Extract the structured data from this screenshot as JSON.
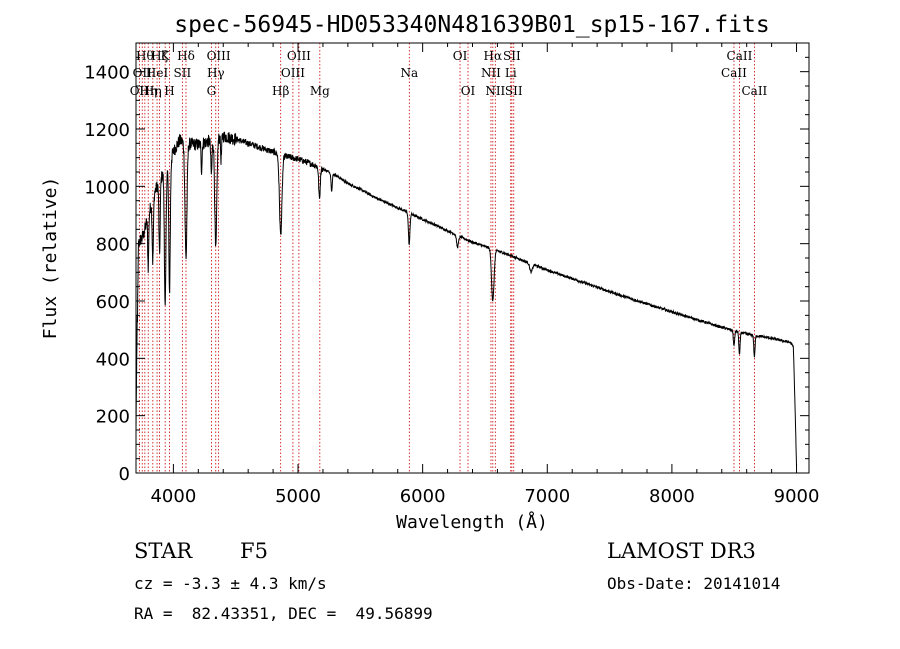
{
  "chart_data": {
    "type": "line",
    "title": "spec-56945-HD053340N481639B01_sp15-167.fits",
    "xlabel": "Wavelength (Å)",
    "ylabel": "Flux (relative)",
    "xlim": [
      3700,
      9100
    ],
    "ylim": [
      0,
      1500
    ],
    "xticks": [
      4000,
      5000,
      6000,
      7000,
      8000,
      9000
    ],
    "yticks": [
      0,
      200,
      400,
      600,
      800,
      1000,
      1200,
      1400
    ],
    "grid": false,
    "line_color": "#000000",
    "marker_color": "#cc0000",
    "continuum": {
      "x": [
        3700,
        3720,
        3760,
        3800,
        3850,
        3900,
        3950,
        4000,
        4050,
        4100,
        4200,
        4300,
        4400,
        4500,
        4600,
        4700,
        4800,
        4900,
        5000,
        5100,
        5200,
        5300,
        5400,
        5500,
        5600,
        5700,
        5800,
        5900,
        6000,
        6100,
        6200,
        6300,
        6400,
        6500,
        6600,
        6700,
        6800,
        6900,
        7000,
        7200,
        7400,
        7600,
        7800,
        8000,
        8200,
        8400,
        8600,
        8800,
        8950,
        8975,
        8990,
        9000
      ],
      "y": [
        150,
        800,
        830,
        900,
        980,
        1030,
        1060,
        1120,
        1160,
        1150,
        1145,
        1160,
        1175,
        1165,
        1150,
        1135,
        1120,
        1105,
        1095,
        1080,
        1060,
        1040,
        1010,
        990,
        965,
        945,
        925,
        905,
        885,
        865,
        845,
        825,
        805,
        790,
        775,
        760,
        742,
        725,
        708,
        678,
        648,
        618,
        590,
        562,
        535,
        508,
        485,
        470,
        455,
        440,
        200,
        20
      ]
    },
    "absorption_lines": [
      {
        "center": 3934,
        "depth": 480,
        "width": 6
      },
      {
        "center": 3969,
        "depth": 450,
        "width": 6
      },
      {
        "center": 3889,
        "depth": 260,
        "width": 5
      },
      {
        "center": 3835,
        "depth": 220,
        "width": 5
      },
      {
        "center": 3798,
        "depth": 180,
        "width": 4
      },
      {
        "center": 4101,
        "depth": 400,
        "width": 8
      },
      {
        "center": 4226,
        "depth": 90,
        "width": 4
      },
      {
        "center": 4305,
        "depth": 120,
        "width": 5
      },
      {
        "center": 4340,
        "depth": 390,
        "width": 8
      },
      {
        "center": 4383,
        "depth": 80,
        "width": 4
      },
      {
        "center": 4861,
        "depth": 280,
        "width": 10
      },
      {
        "center": 5172,
        "depth": 110,
        "width": 6
      },
      {
        "center": 5270,
        "depth": 60,
        "width": 5
      },
      {
        "center": 5892,
        "depth": 110,
        "width": 6
      },
      {
        "center": 6280,
        "depth": 40,
        "width": 8
      },
      {
        "center": 6563,
        "depth": 180,
        "width": 10
      },
      {
        "center": 6870,
        "depth": 30,
        "width": 10
      },
      {
        "center": 8498,
        "depth": 55,
        "width": 5
      },
      {
        "center": 8542,
        "depth": 80,
        "width": 5
      },
      {
        "center": 8662,
        "depth": 75,
        "width": 5
      }
    ],
    "spectral_lines": [
      {
        "wave": 3727,
        "label": "OII",
        "row": 2
      },
      {
        "wave": 3750,
        "label": "OII",
        "row": 1
      },
      {
        "wave": 3771,
        "label": "Hθ",
        "row": 0
      },
      {
        "wave": 3798,
        "label": "Hη",
        "row": 2
      },
      {
        "wave": 3835,
        "label": "Hη",
        "row": 2
      },
      {
        "wave": 3869,
        "label": "HeI",
        "row": 1
      },
      {
        "wave": 3889,
        "label": "Hζ",
        "row": 0
      },
      {
        "wave": 3934,
        "label": "K",
        "row": 0
      },
      {
        "wave": 3969,
        "label": "H",
        "row": 2
      },
      {
        "wave": 4072,
        "label": "SII",
        "row": 1
      },
      {
        "wave": 4101,
        "label": "Hδ",
        "row": 0
      },
      {
        "wave": 4305,
        "label": "G",
        "row": 2
      },
      {
        "wave": 4340,
        "label": "Hγ",
        "row": 1
      },
      {
        "wave": 4363,
        "label": "OIII",
        "row": 0
      },
      {
        "wave": 4861,
        "label": "Hβ",
        "row": 2
      },
      {
        "wave": 4959,
        "label": "OIII",
        "row": 1
      },
      {
        "wave": 5007,
        "label": "OIII",
        "row": 0
      },
      {
        "wave": 5175,
        "label": "Mg",
        "row": 2
      },
      {
        "wave": 5893,
        "label": "Na",
        "row": 1
      },
      {
        "wave": 6300,
        "label": "OI",
        "row": 0
      },
      {
        "wave": 6364,
        "label": "OI",
        "row": 2
      },
      {
        "wave": 6548,
        "label": "NII",
        "row": 1
      },
      {
        "wave": 6563,
        "label": "Hα",
        "row": 0
      },
      {
        "wave": 6583,
        "label": "NII",
        "row": 2
      },
      {
        "wave": 6707,
        "label": "Li",
        "row": 1
      },
      {
        "wave": 6716,
        "label": "SII",
        "row": 0
      },
      {
        "wave": 6731,
        "label": "SII",
        "row": 2
      },
      {
        "wave": 8498,
        "label": "CaII",
        "row": 1
      },
      {
        "wave": 8542,
        "label": "CaII",
        "row": 0
      },
      {
        "wave": 8662,
        "label": "CaII",
        "row": 2
      }
    ]
  },
  "info": {
    "class": "STAR",
    "subclass": "F5",
    "survey": "LAMOST DR3",
    "velocity": "cz = -3.3 ± 4.3 km/s",
    "obs_date": "Obs-Date: 20141014",
    "coords": "RA =  82.43351, DEC =  49.56899"
  }
}
